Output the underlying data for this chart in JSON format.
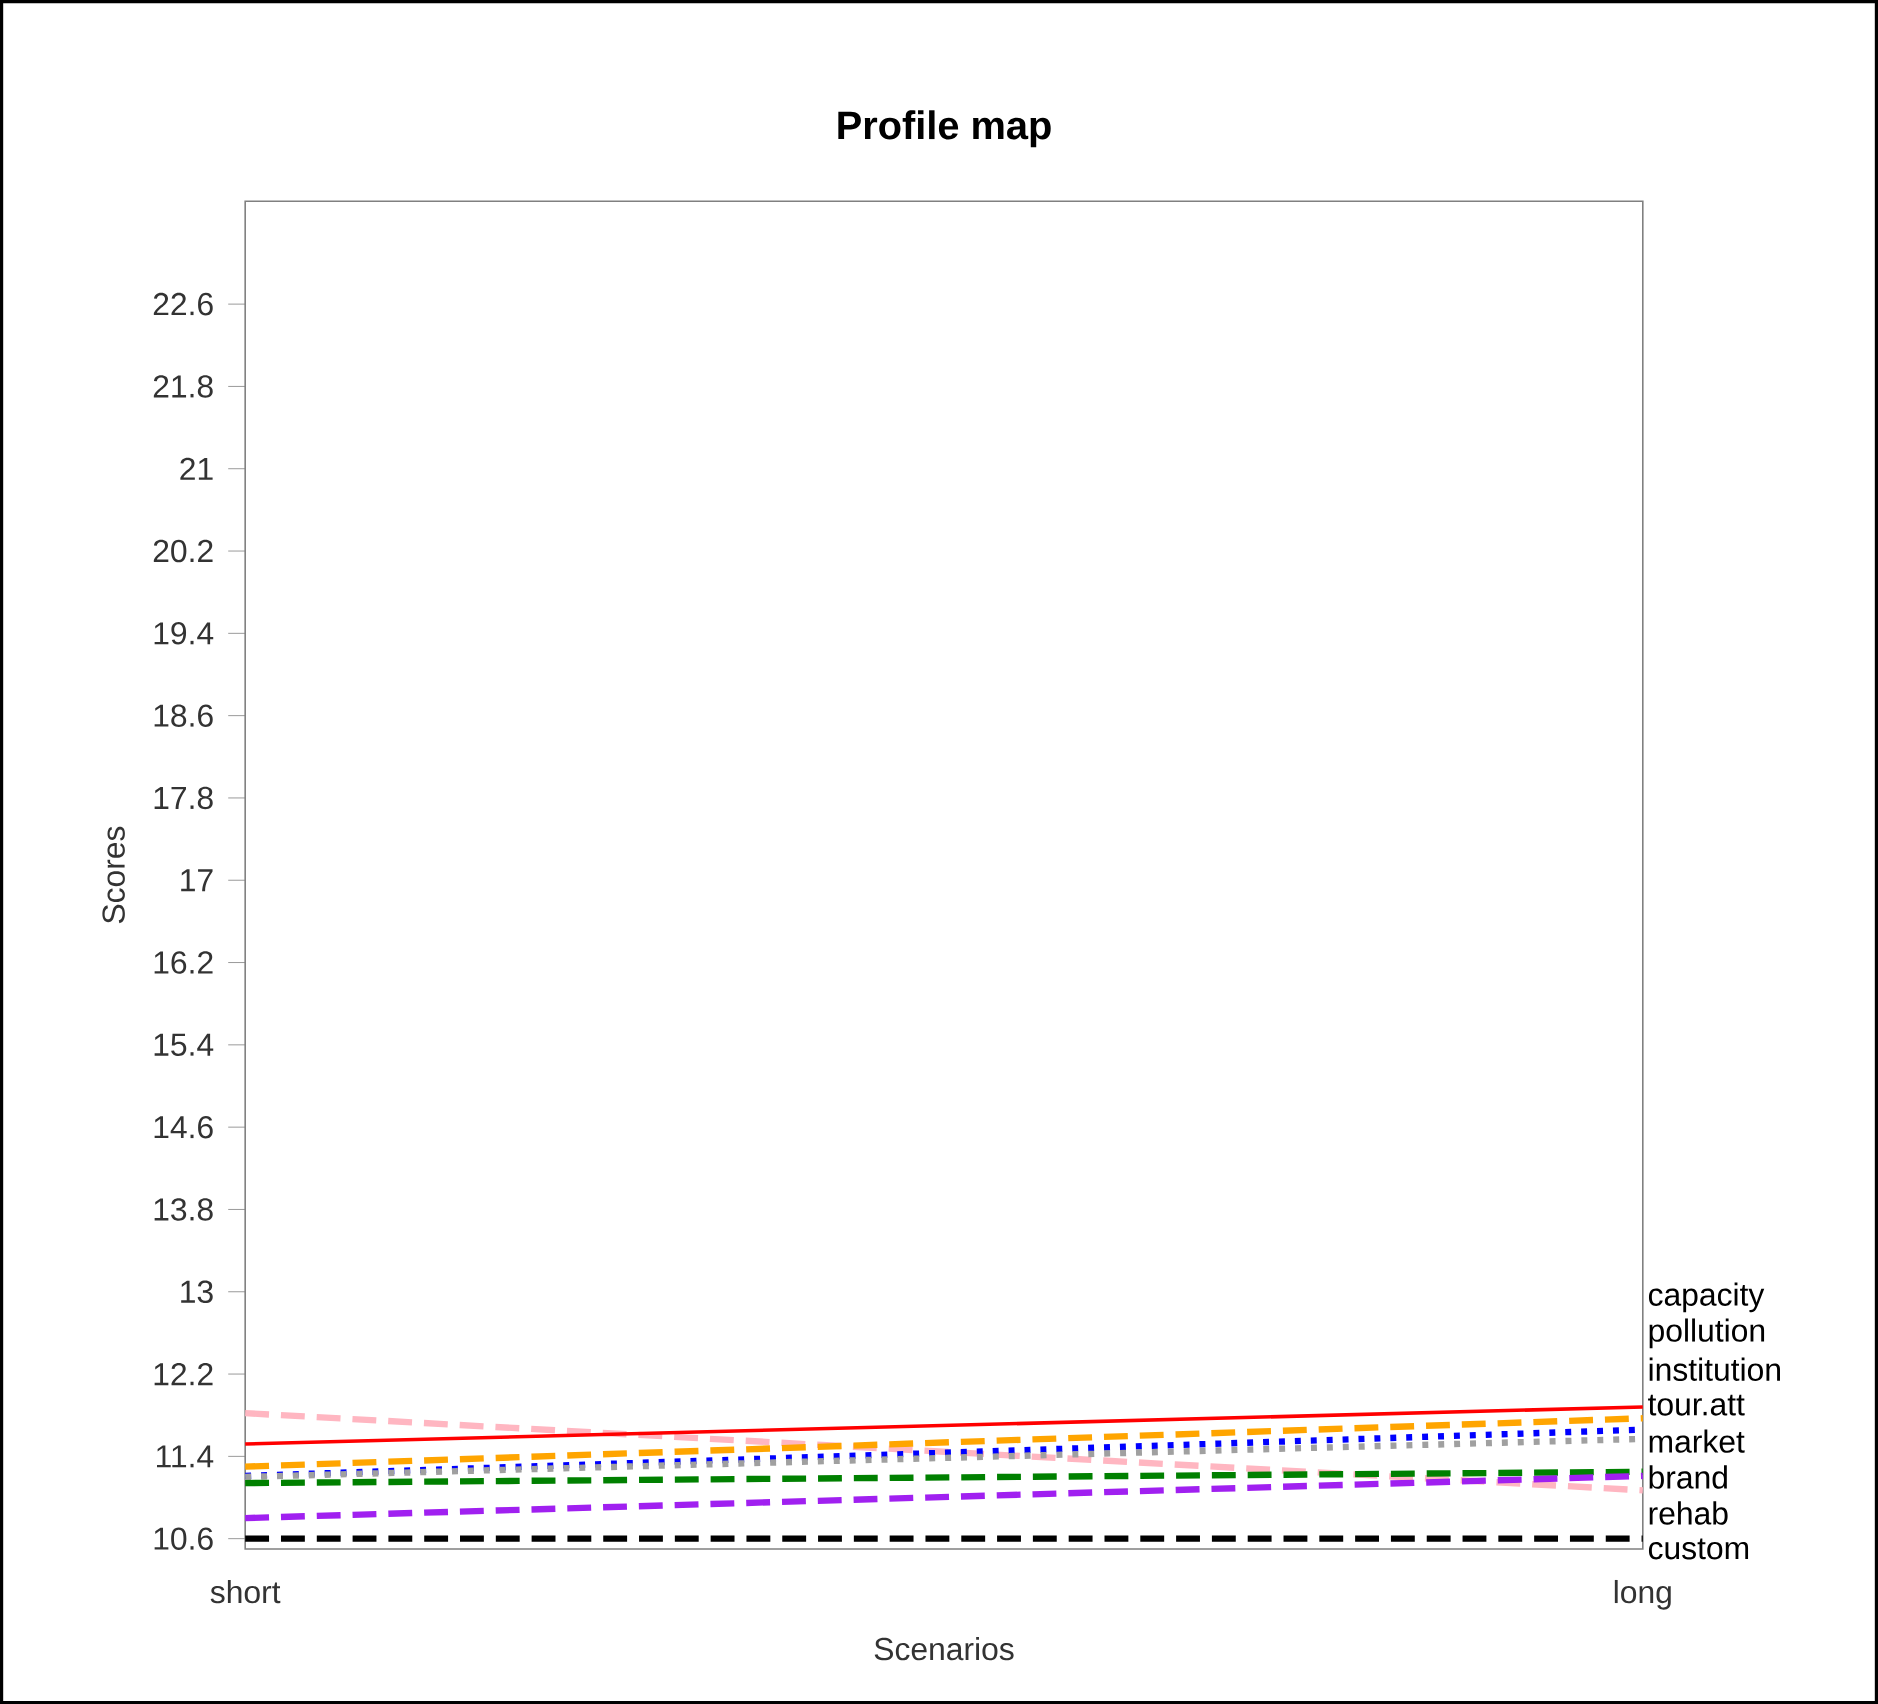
{
  "chart_data": {
    "type": "line",
    "title": "Profile map",
    "xlabel": "Scenarios",
    "ylabel": "Scores",
    "categories": [
      "short",
      "long"
    ],
    "ylim": [
      10.5,
      23.6
    ],
    "yticks": [
      10.6,
      11.4,
      12.2,
      13,
      13.8,
      14.6,
      15.4,
      16.2,
      17,
      17.8,
      18.6,
      19.4,
      20.2,
      21,
      21.8,
      22.6
    ],
    "series": [
      {
        "name": "rehab",
        "color": "#ffb6c1",
        "values": [
          11.82,
          11.07
        ],
        "line_style": "dashed"
      },
      {
        "name": "capacity",
        "color": "#ff0000",
        "values": [
          11.52,
          11.88
        ],
        "line_style": "solid"
      },
      {
        "name": "pollution",
        "color": "#ffa500",
        "values": [
          11.3,
          11.77
        ],
        "line_style": "dashed"
      },
      {
        "name": "institution",
        "color": "#0000ff",
        "values": [
          11.21,
          11.66
        ],
        "line_style": "dotted"
      },
      {
        "name": "tour.att",
        "color": "#a0a0a0",
        "values": [
          11.2,
          11.57
        ],
        "line_style": "dotted"
      },
      {
        "name": "market",
        "color": "#008000",
        "values": [
          11.14,
          11.25
        ],
        "line_style": "dashed"
      },
      {
        "name": "brand",
        "color": "#a020f0",
        "values": [
          10.8,
          11.21
        ],
        "line_style": "dashed"
      },
      {
        "name": "custom",
        "color": "#000000",
        "values": [
          10.6,
          10.6
        ],
        "line_style": "dashed"
      }
    ]
  }
}
